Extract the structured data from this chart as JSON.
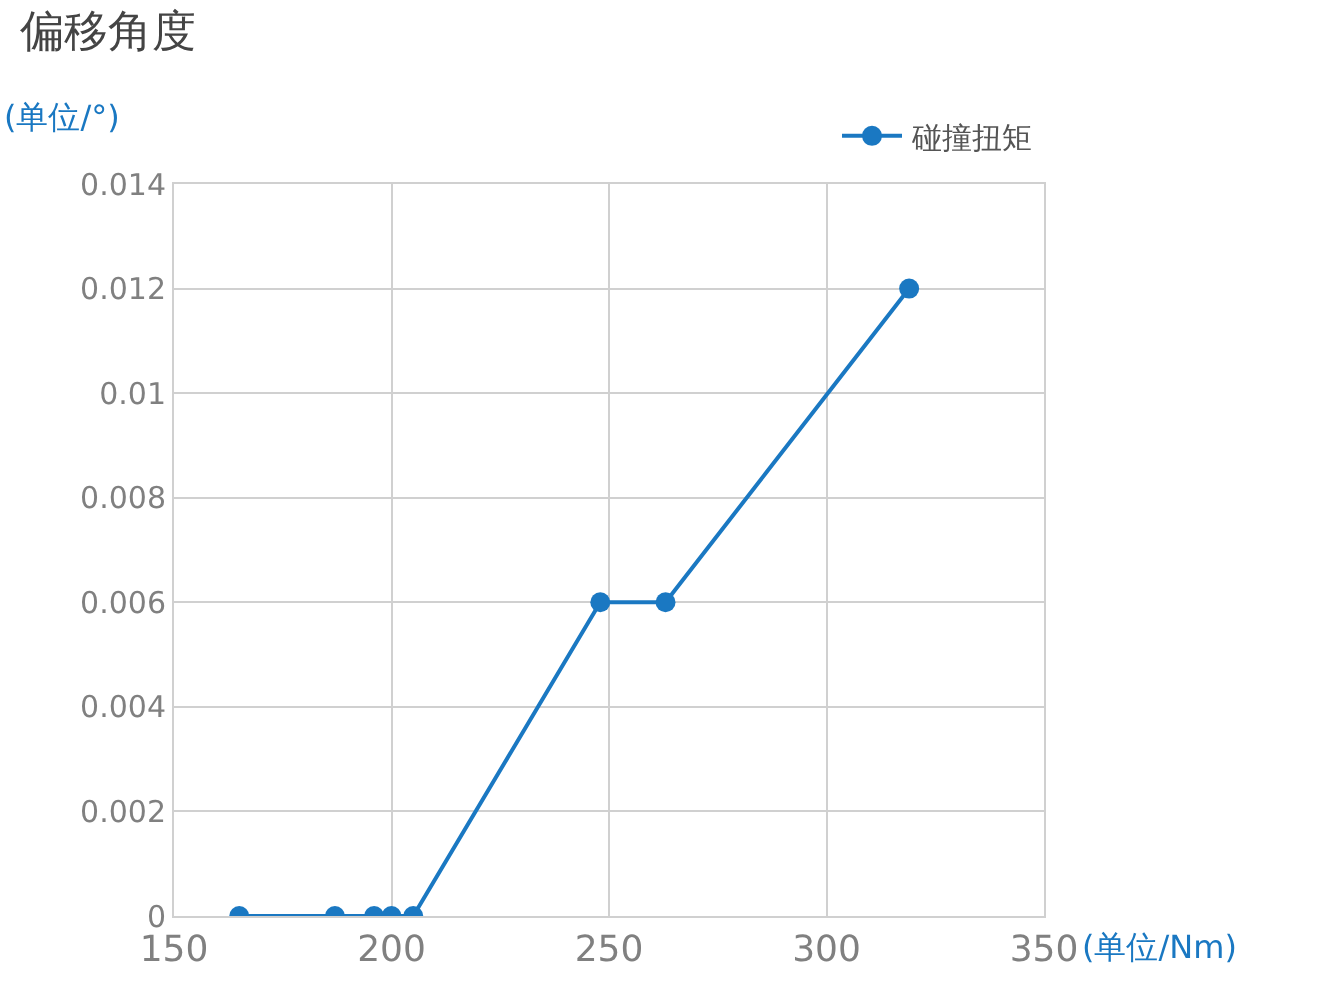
{
  "chart_data": {
    "type": "line",
    "title": "偏移角度",
    "xlabel": "(单位/Nm)",
    "ylabel": "(单位/°)",
    "x": [
      165,
      187,
      196,
      200,
      205,
      248,
      263,
      319
    ],
    "series": [
      {
        "name": "碰撞扭矩",
        "color": "#1a78c2",
        "values": [
          0,
          0,
          0,
          0,
          0,
          0.006,
          0.006,
          0.012
        ]
      }
    ],
    "xlim": [
      150,
      350
    ],
    "xticks": [
      150,
      200,
      250,
      300,
      350
    ],
    "ylim": [
      0,
      0.014
    ],
    "yticks": [
      0,
      0.002,
      0.004,
      0.006,
      0.008,
      {
        "value": 0.01,
        "label": "0.01"
      },
      0.012,
      0.014
    ],
    "grid": true,
    "legend": "top right",
    "marker": "circle",
    "line_style": "solid"
  }
}
